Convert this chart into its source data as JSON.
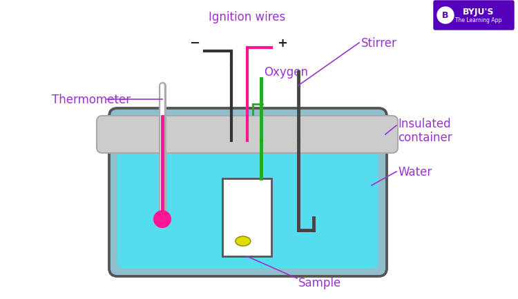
{
  "bg_color": "#ffffff",
  "label_color": "#9933CC",
  "figsize": [
    7.5,
    4.35
  ],
  "dpi": 100,
  "labels": {
    "ignition_wires": "Ignition wires",
    "thermometer": "Thermometer",
    "oxygen": "Oxygen",
    "stirrer": "Stirrer",
    "insulated_container": "Insulated\ncontainer",
    "water": "Water",
    "sample": "Sample"
  },
  "colors": {
    "beaker_fill": "#8FBFCC",
    "beaker_edge": "#555555",
    "water_fill": "#55DDEE",
    "lid_fill": "#CCCCCC",
    "lid_edge": "#AAAAAA",
    "bomb_fill": "#FFFFFF",
    "bomb_edge": "#555555",
    "thermo_tube": "#AAAAAA",
    "thermo_mercury": "#FF1493",
    "wire_neg": "#333333",
    "wire_pos": "#FF1493",
    "oxygen_tube": "#22AA22",
    "stirrer": "#444444",
    "sample_dot": "#DDDD00",
    "byju_box": "#5500BB"
  }
}
